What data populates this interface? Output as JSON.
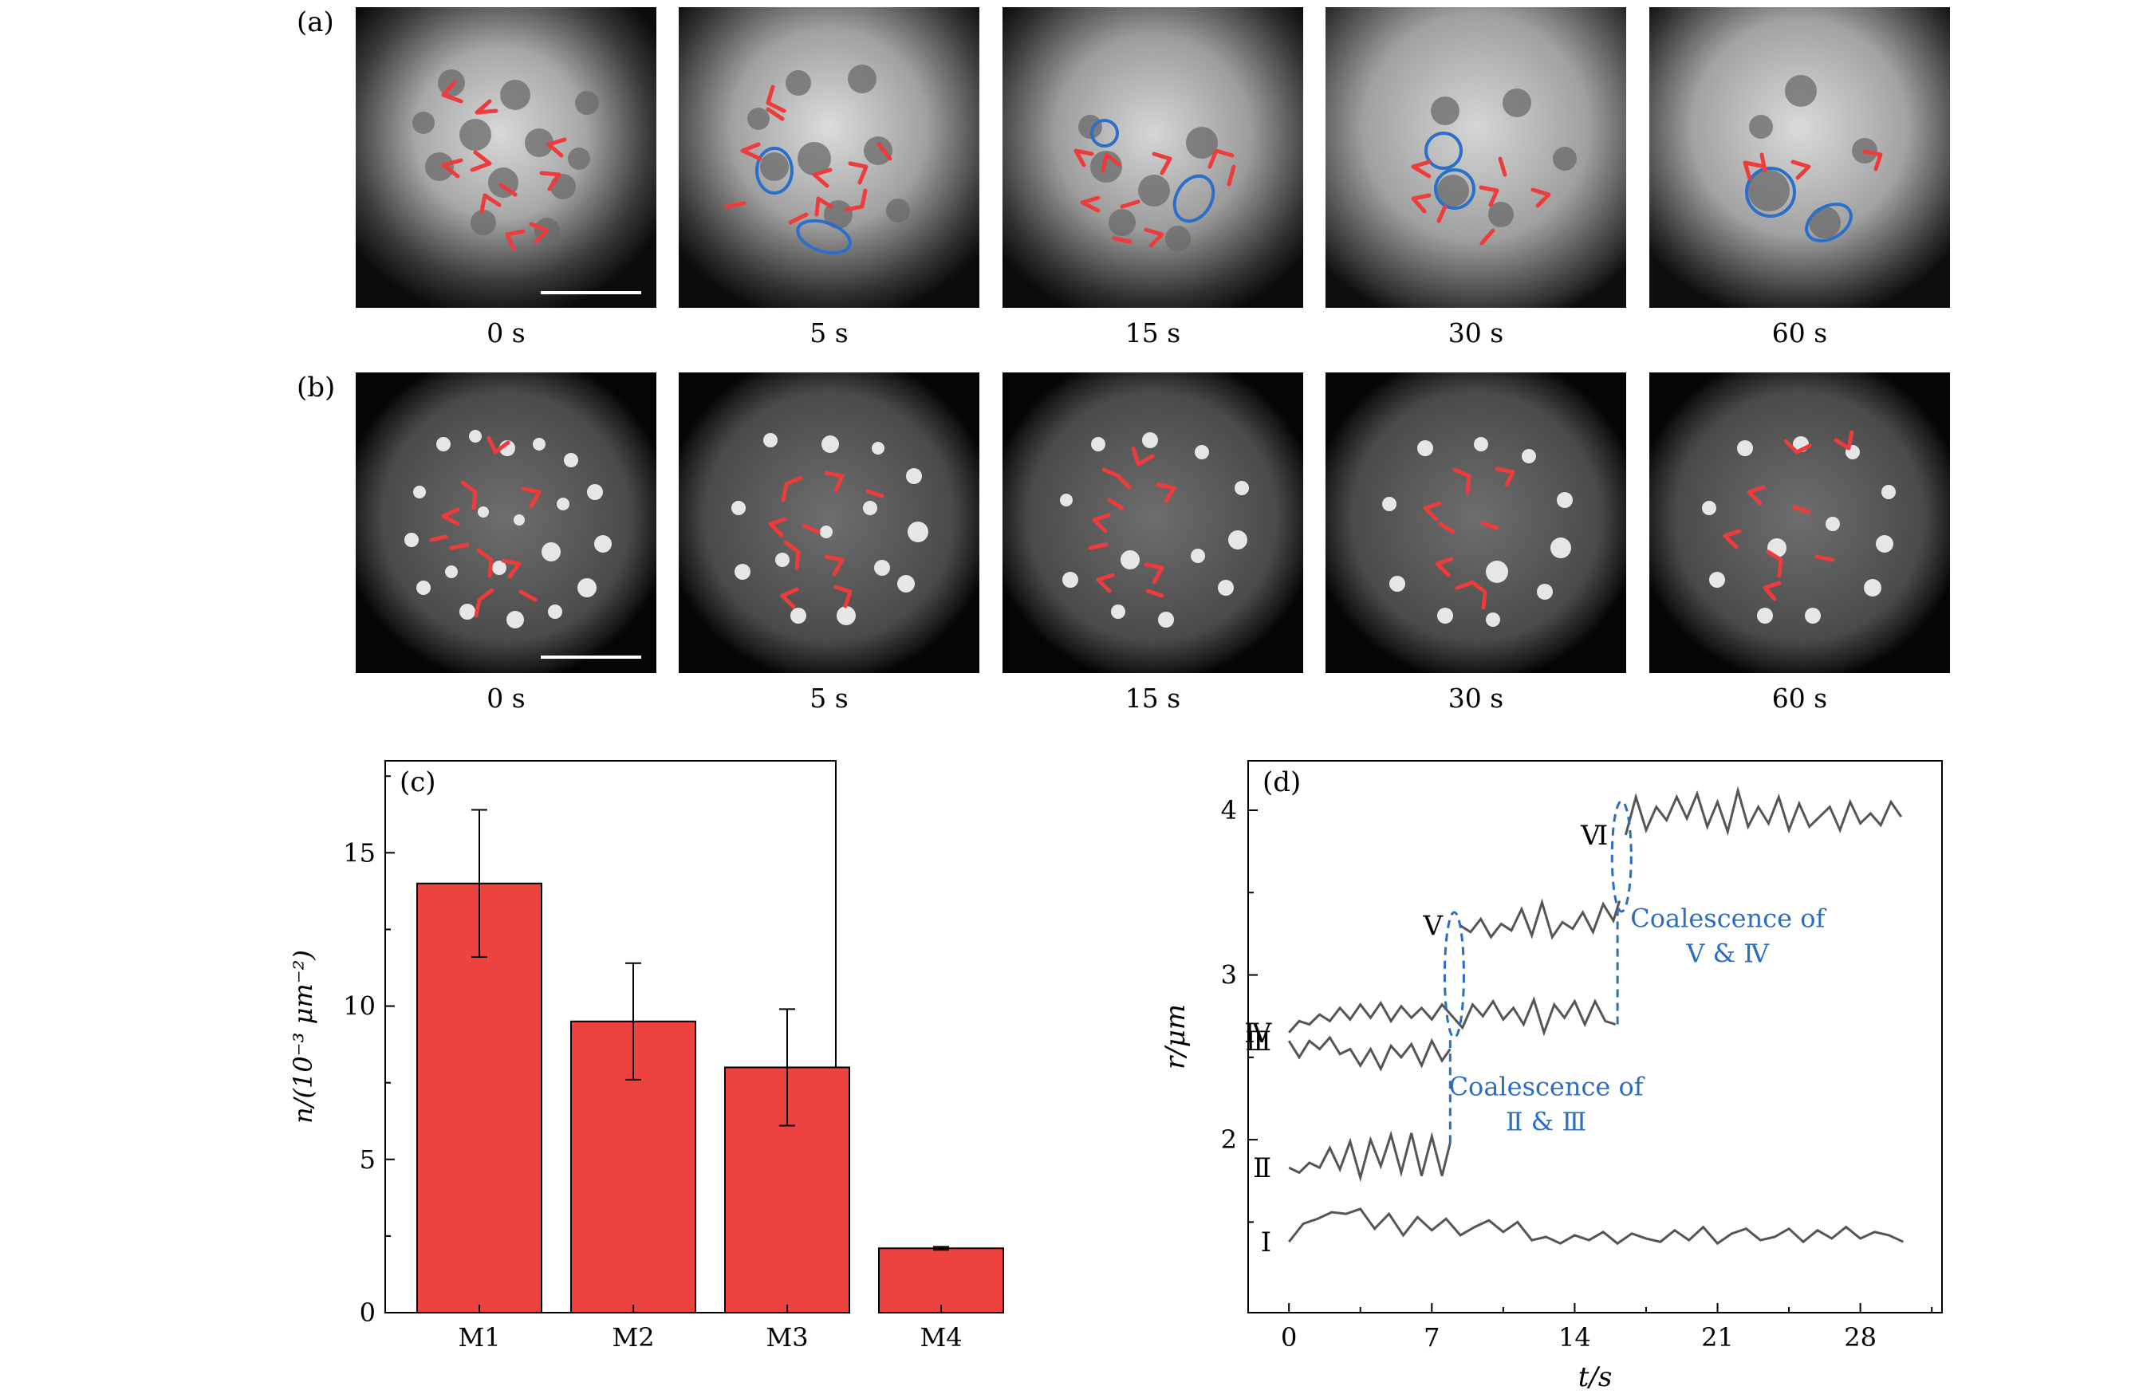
{
  "panels": {
    "a": {
      "label": "(a)",
      "times": [
        "0 s",
        "5 s",
        "15 s",
        "30 s",
        "60 s"
      ]
    },
    "b": {
      "label": "(b)",
      "times": [
        "0 s",
        "5 s",
        "15 s",
        "30 s",
        "60 s"
      ]
    }
  },
  "colors": {
    "bar": "#ee4240",
    "arrow": "#ee3b3b",
    "ellipse": "#2a6fc9",
    "trace": "#555555",
    "annotation": "#2b6cc4"
  },
  "chart_data": [
    {
      "type": "bar",
      "panel_label": "(c)",
      "categories": [
        "M1",
        "M2",
        "M3",
        "M4"
      ],
      "values": [
        14.0,
        9.5,
        8.0,
        2.1
      ],
      "errors": [
        2.4,
        1.9,
        1.9,
        0.05
      ],
      "ylabel": "n/(10⁻³ μm⁻²)",
      "ylim": [
        0,
        18
      ],
      "yticks": [
        0,
        5,
        10,
        15
      ],
      "grid": false
    },
    {
      "type": "line",
      "panel_label": "(d)",
      "xlabel": "t/s",
      "ylabel": "r/μm",
      "xlim": [
        -2,
        32
      ],
      "ylim": [
        0.95,
        4.3
      ],
      "xticks": [
        0,
        7,
        14,
        21,
        28
      ],
      "yticks": [
        2,
        3,
        4
      ],
      "series": [
        {
          "label": "Ⅰ",
          "x": [
            0,
            0.7,
            1.4,
            2.1,
            2.8,
            3.5,
            4.2,
            4.9,
            5.6,
            6.3,
            7,
            7.7,
            8.4,
            9.1,
            9.8,
            10.5,
            11.2,
            11.9,
            12.6,
            13.3,
            14,
            14.7,
            15.4,
            16.1,
            16.8,
            17.5,
            18.2,
            18.9,
            19.6,
            20.3,
            21,
            21.7,
            22.4,
            23.1,
            23.8,
            24.5,
            25.2,
            25.9,
            26.6,
            27.3,
            28,
            28.7,
            29.4,
            30.1
          ],
          "y": [
            1.38,
            1.49,
            1.52,
            1.56,
            1.55,
            1.58,
            1.46,
            1.55,
            1.42,
            1.53,
            1.45,
            1.52,
            1.42,
            1.47,
            1.51,
            1.44,
            1.5,
            1.39,
            1.41,
            1.37,
            1.42,
            1.39,
            1.44,
            1.37,
            1.43,
            1.4,
            1.38,
            1.45,
            1.39,
            1.47,
            1.37,
            1.43,
            1.46,
            1.39,
            1.41,
            1.46,
            1.38,
            1.45,
            1.4,
            1.47,
            1.4,
            1.44,
            1.42,
            1.38
          ]
        },
        {
          "label": "Ⅱ",
          "x": [
            0,
            0.5,
            1,
            1.5,
            2,
            2.5,
            3,
            3.5,
            4,
            4.5,
            5,
            5.5,
            6,
            6.5,
            7,
            7.5,
            7.9
          ],
          "y": [
            1.83,
            1.8,
            1.86,
            1.83,
            1.95,
            1.82,
            1.99,
            1.77,
            2.0,
            1.84,
            2.03,
            1.8,
            2.04,
            1.78,
            2.02,
            1.78,
            1.98
          ]
        },
        {
          "label": "Ⅲ",
          "x": [
            0,
            0.5,
            1,
            1.5,
            2,
            2.5,
            3,
            3.5,
            4,
            4.5,
            5,
            5.5,
            6,
            6.5,
            7,
            7.5,
            7.9
          ],
          "y": [
            2.6,
            2.5,
            2.6,
            2.55,
            2.62,
            2.52,
            2.55,
            2.45,
            2.55,
            2.43,
            2.57,
            2.5,
            2.58,
            2.45,
            2.6,
            2.48,
            2.55
          ]
        },
        {
          "label": "Ⅳ",
          "x": [
            0,
            0.5,
            1,
            1.5,
            2,
            2.5,
            3,
            3.5,
            4,
            4.5,
            5,
            5.5,
            6,
            6.5,
            7,
            7.5,
            8,
            8.5,
            9,
            9.5,
            10,
            10.5,
            11,
            11.5,
            12,
            12.5,
            13,
            13.5,
            14,
            14.5,
            15,
            15.5,
            16
          ],
          "y": [
            2.65,
            2.72,
            2.7,
            2.76,
            2.72,
            2.8,
            2.73,
            2.82,
            2.74,
            2.83,
            2.72,
            2.81,
            2.74,
            2.8,
            2.73,
            2.82,
            2.75,
            2.68,
            2.82,
            2.75,
            2.84,
            2.73,
            2.8,
            2.7,
            2.85,
            2.65,
            2.82,
            2.74,
            2.84,
            2.7,
            2.84,
            2.72,
            2.7
          ]
        },
        {
          "label": "Ⅴ",
          "x": [
            8.4,
            8.9,
            9.4,
            9.9,
            10.4,
            10.9,
            11.4,
            11.9,
            12.4,
            12.9,
            13.4,
            13.9,
            14.4,
            14.9,
            15.4,
            15.9,
            16.2
          ],
          "y": [
            3.3,
            3.26,
            3.34,
            3.23,
            3.31,
            3.27,
            3.4,
            3.24,
            3.44,
            3.23,
            3.32,
            3.28,
            3.38,
            3.26,
            3.43,
            3.33,
            3.45
          ]
        },
        {
          "label": "Ⅵ",
          "x": [
            16.5,
            17,
            17.5,
            18,
            18.5,
            19,
            19.5,
            20,
            20.5,
            21,
            21.5,
            22,
            22.5,
            23,
            23.5,
            24,
            24.5,
            25,
            25.5,
            26,
            26.5,
            27,
            27.5,
            28,
            28.5,
            29,
            29.5,
            30
          ],
          "y": [
            3.85,
            4.08,
            3.88,
            4.02,
            3.94,
            4.08,
            3.95,
            4.1,
            3.9,
            4.05,
            3.87,
            4.12,
            3.9,
            4.02,
            3.92,
            4.08,
            3.88,
            4.04,
            3.9,
            3.96,
            4.02,
            3.88,
            4.05,
            3.92,
            3.98,
            3.91,
            4.05,
            3.96
          ]
        }
      ],
      "annotations": [
        {
          "lines": [
            "Coalescence of",
            "Ⅱ & Ⅲ"
          ]
        },
        {
          "lines": [
            "Coalescence of",
            "Ⅴ & Ⅳ"
          ]
        }
      ]
    }
  ]
}
